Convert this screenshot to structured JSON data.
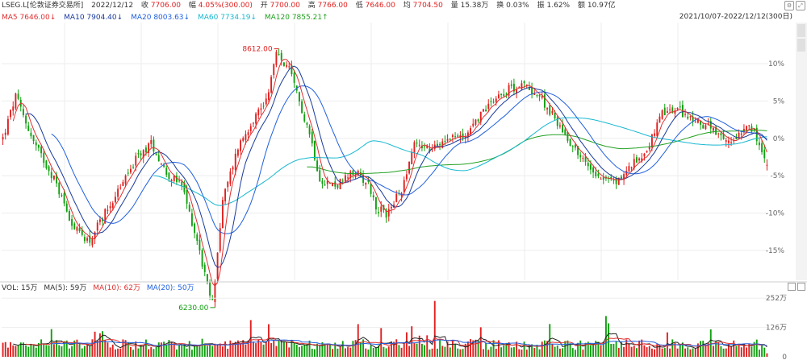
{
  "header": {
    "symbol": "LSEG.L[伦敦证券交易所]",
    "date": "2022/12/12",
    "close_label": "收",
    "close": "7706.00",
    "change_label": "幅",
    "change": "4.05%(300.00)",
    "open_label": "开",
    "open": "7700.00",
    "high_label": "高",
    "high": "7766.00",
    "low_label": "低",
    "low": "7646.00",
    "avg_label": "均",
    "avg": "7704.50",
    "vol_label": "量",
    "vol": "15.38万",
    "turnover_label": "换",
    "turnover": "0.03%",
    "amp_label": "振",
    "amp": "1.62%",
    "amount_label": "额",
    "amount": "10.97亿",
    "range": "2021/10/07-2022/12/12(300日)"
  },
  "ma": [
    {
      "label": "MA5",
      "value": "7646.00",
      "arrow": "↓",
      "color": "#e03030"
    },
    {
      "label": "MA10",
      "value": "7904.40",
      "arrow": "↓",
      "color": "#1a3a9c"
    },
    {
      "label": "MA20",
      "value": "8003.63",
      "arrow": "↓",
      "color": "#2060e0"
    },
    {
      "label": "MA60",
      "value": "7734.19",
      "arrow": "↓",
      "color": "#18b8d0"
    },
    {
      "label": "MA120",
      "value": "7855.21",
      "arrow": "↑",
      "color": "#20a020"
    }
  ],
  "volume_legend": {
    "vol": "VOL: 15万",
    "ma5": "MA(5): 59万",
    "ma10": "MA(10): 62万",
    "ma20": "MA(20): 50万"
  },
  "colors": {
    "up": "#e02020",
    "down": "#10a010",
    "grid": "#ededed"
  },
  "chart_data": {
    "type": "candlestick",
    "title": "LSEG.L",
    "y_axis_percent_ticks": [
      10,
      5,
      0,
      -5,
      -10,
      -15
    ],
    "y_axis_tick_labels": [
      "10%",
      "5%",
      "0%",
      "-5%",
      "-10%",
      "-15%"
    ],
    "ylim_percent": [
      -19,
      15.5
    ],
    "base_price": 7990,
    "annotations": [
      {
        "label": "8612.00",
        "type": "high"
      },
      {
        "label": "6230.00",
        "type": "low"
      }
    ],
    "price_path": [
      [
        0,
        7990
      ],
      [
        5,
        8440
      ],
      [
        12,
        7950
      ],
      [
        20,
        7560
      ],
      [
        28,
        7020
      ],
      [
        34,
        6890
      ],
      [
        40,
        7200
      ],
      [
        46,
        7470
      ],
      [
        52,
        7760
      ],
      [
        58,
        7940
      ],
      [
        64,
        7620
      ],
      [
        70,
        7480
      ],
      [
        76,
        6900
      ],
      [
        80,
        6410
      ],
      [
        82,
        6230
      ],
      [
        86,
        7320
      ],
      [
        92,
        7900
      ],
      [
        98,
        8200
      ],
      [
        103,
        8400
      ],
      [
        107,
        8890
      ],
      [
        112,
        8720
      ],
      [
        116,
        8380
      ],
      [
        120,
        8050
      ],
      [
        124,
        7560
      ],
      [
        130,
        7480
      ],
      [
        138,
        7630
      ],
      [
        143,
        7510
      ],
      [
        146,
        7250
      ],
      [
        150,
        7180
      ],
      [
        156,
        7440
      ],
      [
        161,
        7950
      ],
      [
        168,
        7860
      ],
      [
        174,
        8020
      ],
      [
        180,
        8000
      ],
      [
        186,
        8210
      ],
      [
        192,
        8420
      ],
      [
        198,
        8520
      ],
      [
        204,
        8560
      ],
      [
        210,
        8440
      ],
      [
        216,
        8200
      ],
      [
        222,
        7950
      ],
      [
        228,
        7720
      ],
      [
        234,
        7580
      ],
      [
        240,
        7520
      ],
      [
        246,
        7700
      ],
      [
        252,
        7870
      ],
      [
        258,
        8250
      ],
      [
        264,
        8300
      ],
      [
        270,
        8180
      ],
      [
        276,
        8120
      ],
      [
        280,
        8000
      ],
      [
        283,
        7950
      ],
      [
        285,
        7960
      ],
      [
        292,
        8170
      ],
      [
        299,
        7706
      ]
    ],
    "volume_axis_ticks": [
      0,
      126,
      252
    ],
    "volume_axis_tick_labels": [
      "0",
      "126万",
      "252万"
    ],
    "volume_unit": "万"
  }
}
